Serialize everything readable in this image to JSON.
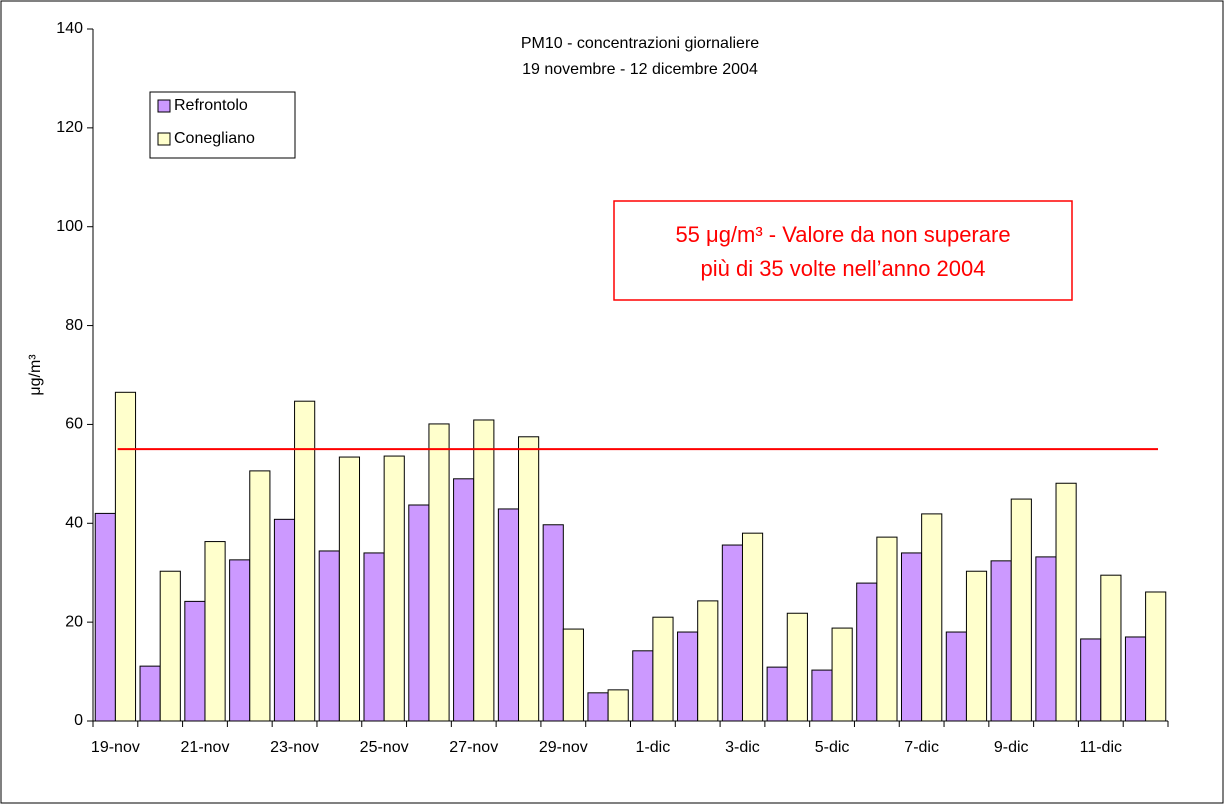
{
  "chart_data": {
    "type": "bar",
    "title": "PM10 - concentrazioni giornaliere",
    "subtitle": "19 novembre - 12 dicembre 2004",
    "y_label": "μg/m³",
    "annotation": [
      "55 μg/m³ - Valore da non superare",
      "più di 35 volte nell’anno 2004"
    ],
    "reference_line": {
      "value": 55,
      "color": "#ff0000"
    },
    "categories": [
      "19-nov",
      null,
      "21-nov",
      null,
      "23-nov",
      null,
      "25-nov",
      null,
      "27-nov",
      null,
      "29-nov",
      null,
      "1-dic",
      null,
      "3-dic",
      null,
      "5-dic",
      null,
      "7-dic",
      null,
      "9-dic",
      null,
      "11-dic",
      null
    ],
    "series": [
      {
        "name": "Refrontolo",
        "color": "#cc99ff",
        "values": [
          42,
          11.1,
          24.2,
          32.6,
          40.8,
          34.4,
          34.0,
          43.7,
          49.0,
          42.9,
          39.7,
          5.7,
          14.2,
          18.0,
          35.6,
          10.9,
          10.3,
          27.9,
          34.0,
          18.0,
          32.4,
          33.2,
          16.6,
          17.0
        ]
      },
      {
        "name": "Conegliano",
        "color": "#ffffcc",
        "values": [
          66.5,
          30.3,
          36.3,
          50.6,
          64.7,
          53.4,
          53.6,
          60.1,
          60.9,
          57.5,
          18.6,
          6.3,
          21.0,
          24.3,
          38.0,
          21.8,
          18.8,
          37.2,
          41.9,
          30.3,
          44.9,
          48.1,
          29.5,
          26.1
        ]
      }
    ],
    "ylim": [
      0,
      140
    ],
    "yticks": [
      0,
      20,
      40,
      60,
      80,
      100,
      120,
      140
    ],
    "legend": "top-left",
    "grid": false
  }
}
